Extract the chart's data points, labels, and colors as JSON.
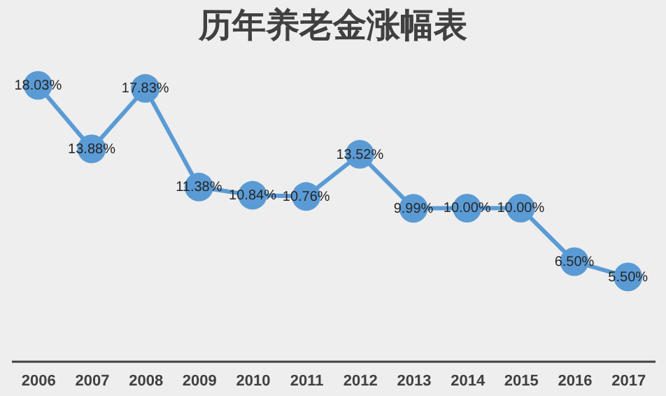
{
  "chart_data": {
    "type": "line",
    "title": "历年养老金涨幅表",
    "categories": [
      "2006",
      "2007",
      "2008",
      "2009",
      "2010",
      "2011",
      "2012",
      "2013",
      "2014",
      "2015",
      "2016",
      "2017"
    ],
    "series": [
      {
        "color": "#5b9bd5",
        "values": [
          18.03,
          13.88,
          17.83,
          11.38,
          10.84,
          10.76,
          13.52,
          9.99,
          10.0,
          10.0,
          6.5,
          5.5
        ],
        "value_labels": [
          "18.03%",
          "13.88%",
          "17.83%",
          "11.38%",
          "10.84%",
          "10.76%",
          "13.52%",
          "9.99%",
          "10.00%",
          "10.00%",
          "6.50%",
          "5.50%"
        ]
      }
    ],
    "marker": "circle",
    "line_style": "solid",
    "grid": false,
    "tick_labels": "x"
  }
}
